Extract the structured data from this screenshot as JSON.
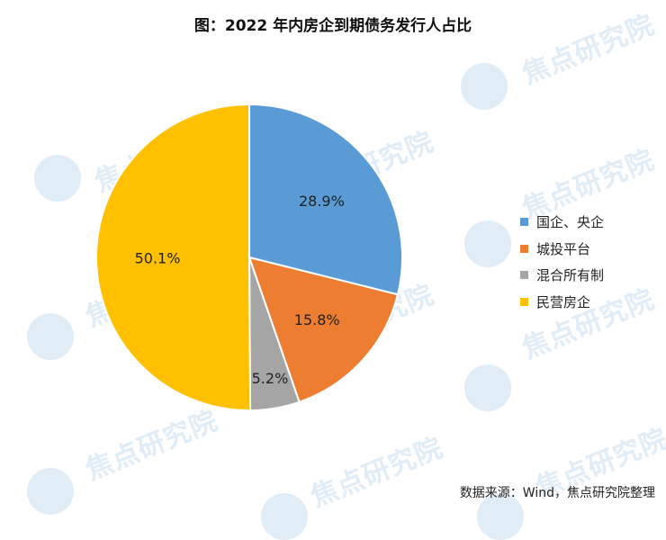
{
  "title": "图：2022 年内房企到期债务发行人占比",
  "source": "数据来源：Wind，焦点研究院整理",
  "watermark_text": "焦点研究院",
  "colors": {
    "国企、央企": "#5B9BD5",
    "城投平台": "#ED7D31",
    "混合所有制": "#A5A5A5",
    "民营房企": "#FFC000"
  },
  "chart_data": {
    "type": "pie",
    "title": "图：2022 年内房企到期债务发行人占比",
    "legend_position": "right",
    "slices": [
      {
        "label": "国企、央企",
        "value": 28.9,
        "display": "28.9%"
      },
      {
        "label": "城投平台",
        "value": 15.8,
        "display": "15.8%"
      },
      {
        "label": "混合所有制",
        "value": 5.2,
        "display": "5.2%"
      },
      {
        "label": "民营房企",
        "value": 50.1,
        "display": "50.1%"
      }
    ]
  }
}
